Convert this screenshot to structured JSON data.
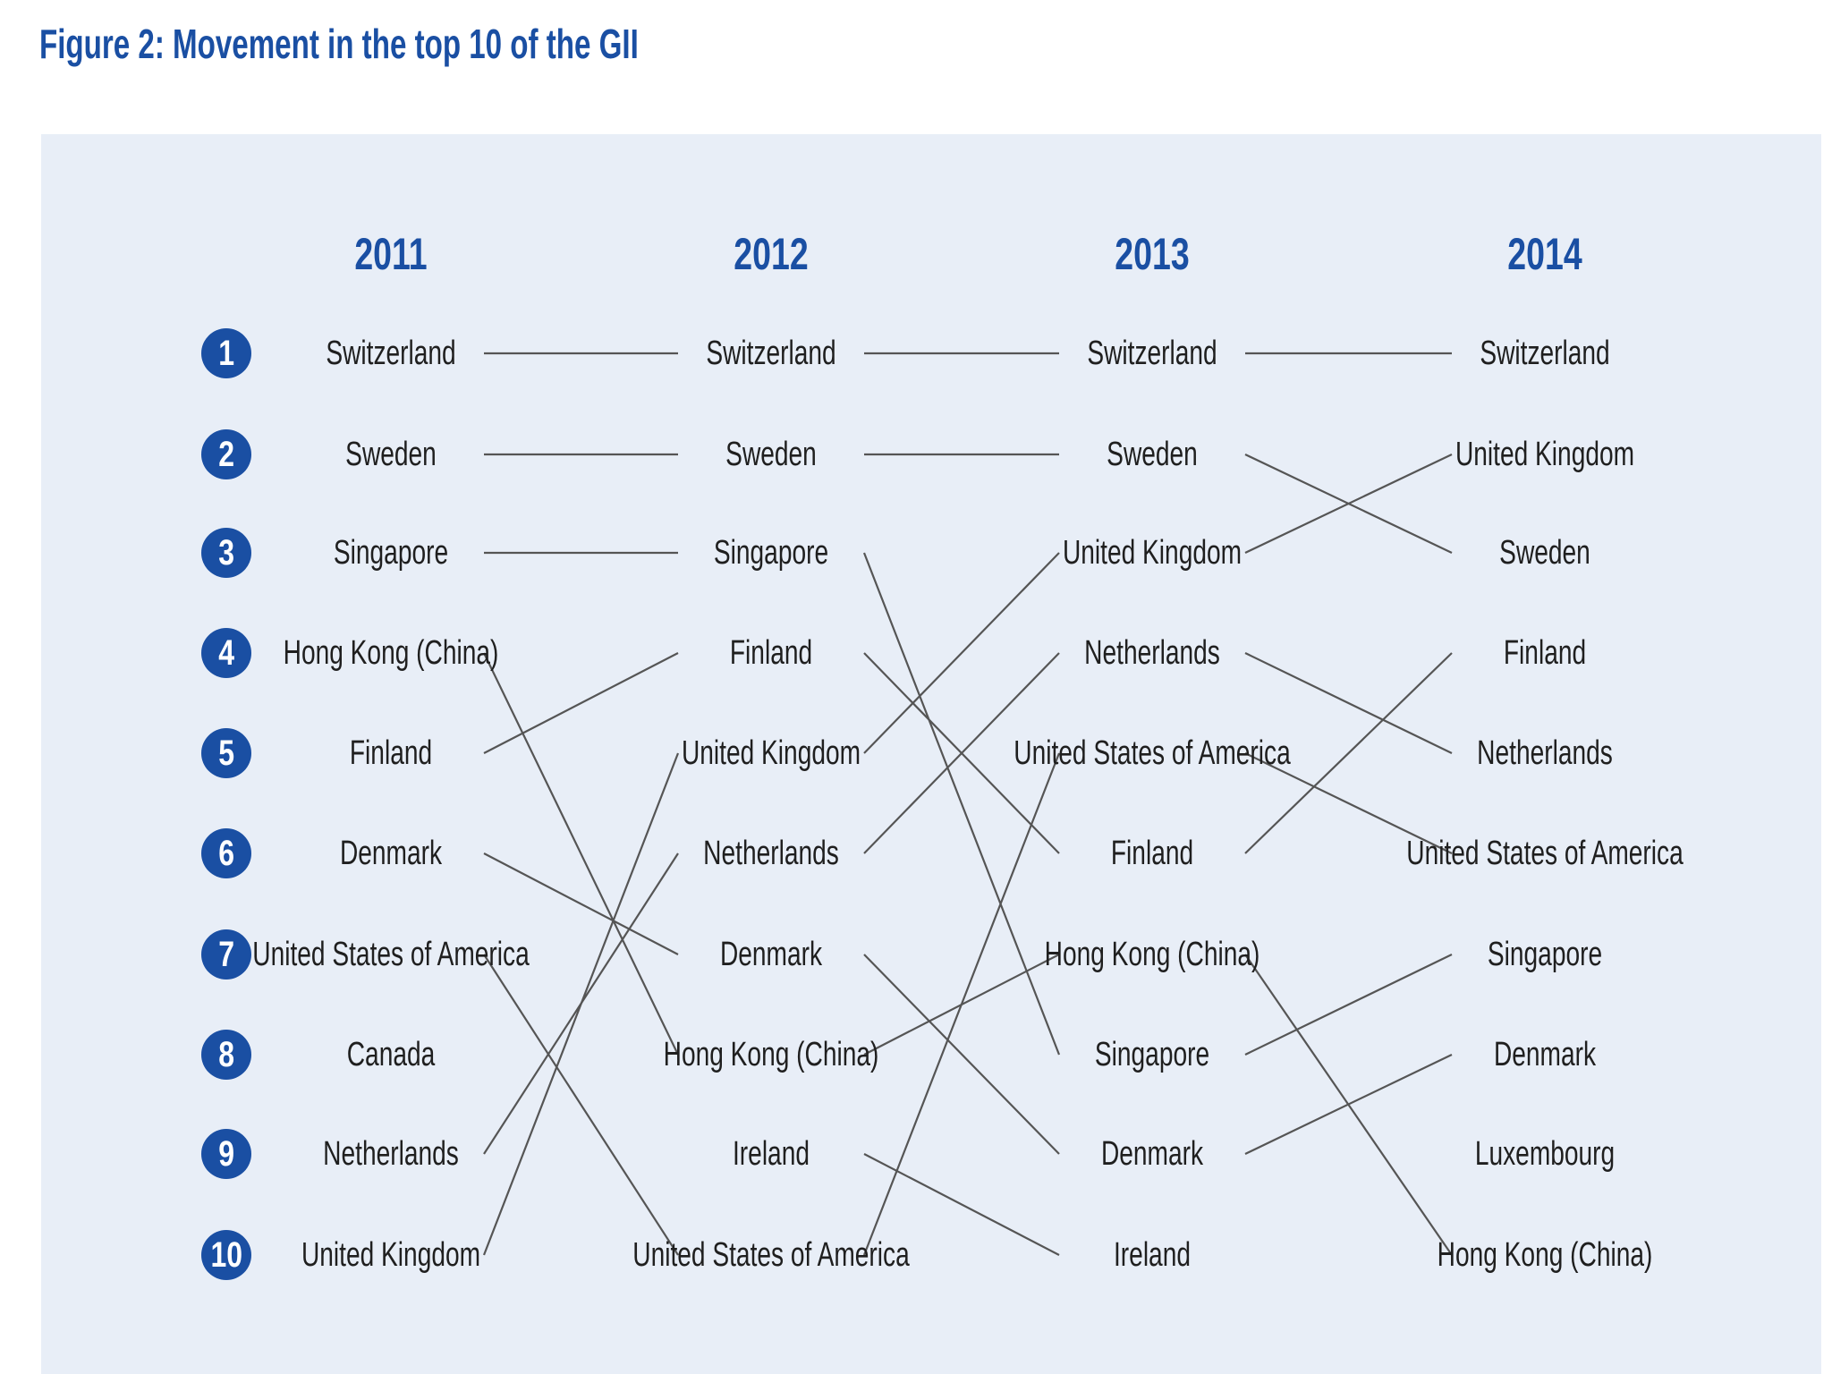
{
  "title": "Figure 2: Movement in the top 10 of the GII",
  "colors": {
    "accent": "#1a4fa3",
    "panel": "#e8eef7",
    "line": "#555555"
  },
  "ranks": [
    "1",
    "2",
    "3",
    "4",
    "5",
    "6",
    "7",
    "8",
    "9",
    "10"
  ],
  "years": [
    {
      "label": "2011",
      "countries": [
        "Switzerland",
        "Sweden",
        "Singapore",
        "Hong Kong (China)",
        "Finland",
        "Denmark",
        "United States of America",
        "Canada",
        "Netherlands",
        "United Kingdom"
      ]
    },
    {
      "label": "2012",
      "countries": [
        "Switzerland",
        "Sweden",
        "Singapore",
        "Finland",
        "United Kingdom",
        "Netherlands",
        "Denmark",
        "Hong Kong (China)",
        "Ireland",
        "United States of America"
      ]
    },
    {
      "label": "2013",
      "countries": [
        "Switzerland",
        "Sweden",
        "United Kingdom",
        "Netherlands",
        "United States of America",
        "Finland",
        "Hong Kong (China)",
        "Singapore",
        "Denmark",
        "Ireland"
      ]
    },
    {
      "label": "2014",
      "countries": [
        "Switzerland",
        "United Kingdom",
        "Sweden",
        "Finland",
        "Netherlands",
        "United States of America",
        "Singapore",
        "Denmark",
        "Luxembourg",
        "Hong Kong (China)"
      ]
    }
  ]
}
